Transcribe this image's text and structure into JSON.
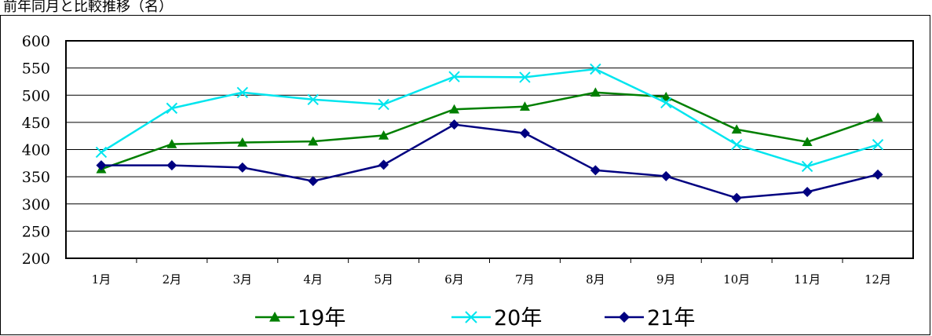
{
  "header_text": "前年同月と比較推移（名）",
  "chart_data": {
    "type": "line",
    "categories": [
      "1月",
      "2月",
      "3月",
      "4月",
      "5月",
      "6月",
      "7月",
      "8月",
      "9月",
      "10月",
      "11月",
      "12月"
    ],
    "ylim": [
      200,
      600
    ],
    "yticks": [
      200,
      250,
      300,
      350,
      400,
      450,
      500,
      550,
      600
    ],
    "grid": true,
    "legend_position": "bottom",
    "series": [
      {
        "name": "19年",
        "color": "#007f00",
        "marker": "triangle",
        "values": [
          364,
          410,
          413,
          415,
          426,
          474,
          479,
          505,
          497,
          437,
          414,
          459
        ]
      },
      {
        "name": "20年",
        "color": "#00e5ee",
        "marker": "x",
        "values": [
          395,
          476,
          505,
          492,
          483,
          534,
          533,
          548,
          486,
          409,
          369,
          409
        ]
      },
      {
        "name": "21年",
        "color": "#000080",
        "marker": "diamond",
        "values": [
          371,
          371,
          367,
          342,
          372,
          446,
          430,
          362,
          351,
          311,
          322,
          354
        ]
      }
    ]
  }
}
